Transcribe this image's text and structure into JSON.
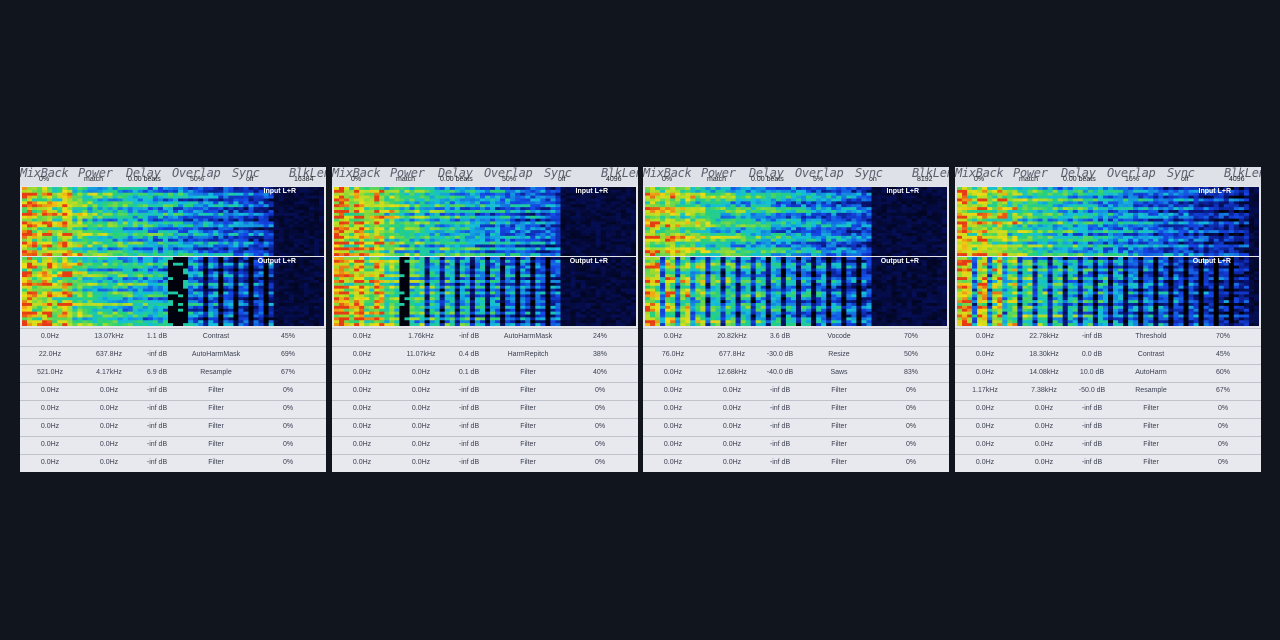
{
  "colors": {
    "background": "#11151d",
    "panel": "#e4e6ec",
    "spectrum_low": "#0a1a8c",
    "spectrum_mid": "#20d0a0",
    "spectrum_high": "#e8e020",
    "spectrum_peak": "#e03010"
  },
  "header_labels": [
    "MixBack",
    "Power",
    "Delay",
    "Overlap",
    "Sync",
    "BlkLen"
  ],
  "panels": [
    {
      "header_values": [
        "0%",
        "match",
        "0.00 beats",
        "50%",
        "off",
        "16384"
      ],
      "input_label": "Input L+R",
      "output_label": "Output L+R",
      "rows": [
        [
          "0.0Hz",
          "13.07kHz",
          "1.1 dB",
          "Contrast",
          "45%"
        ],
        [
          "22.0Hz",
          "637.8Hz",
          "-inf dB",
          "AutoHarmMask",
          "69%"
        ],
        [
          "521.0Hz",
          "4.17kHz",
          "6.9 dB",
          "Resample",
          "67%"
        ],
        [
          "0.0Hz",
          "0.0Hz",
          "-inf dB",
          "Filter",
          "0%"
        ],
        [
          "0.0Hz",
          "0.0Hz",
          "-inf dB",
          "Filter",
          "0%"
        ],
        [
          "0.0Hz",
          "0.0Hz",
          "-inf dB",
          "Filter",
          "0%"
        ],
        [
          "0.0Hz",
          "0.0Hz",
          "-inf dB",
          "Filter",
          "0%"
        ],
        [
          "0.0Hz",
          "0.0Hz",
          "-inf dB",
          "Filter",
          "0%"
        ]
      ]
    },
    {
      "header_values": [
        "0%",
        "match",
        "0.00 beats",
        "50%",
        "off",
        "4096"
      ],
      "input_label": "Input L+R",
      "output_label": "Output L+R",
      "rows": [
        [
          "0.0Hz",
          "1.76kHz",
          "-inf dB",
          "AutoHarmMask",
          "24%"
        ],
        [
          "0.0Hz",
          "11.07kHz",
          "0.4 dB",
          "HarmRepitch",
          "38%"
        ],
        [
          "0.0Hz",
          "0.0Hz",
          "0.1 dB",
          "Filter",
          "40%"
        ],
        [
          "0.0Hz",
          "0.0Hz",
          "-inf dB",
          "Filter",
          "0%"
        ],
        [
          "0.0Hz",
          "0.0Hz",
          "-inf dB",
          "Filter",
          "0%"
        ],
        [
          "0.0Hz",
          "0.0Hz",
          "-inf dB",
          "Filter",
          "0%"
        ],
        [
          "0.0Hz",
          "0.0Hz",
          "-inf dB",
          "Filter",
          "0%"
        ],
        [
          "0.0Hz",
          "0.0Hz",
          "-inf dB",
          "Filter",
          "0%"
        ]
      ]
    },
    {
      "header_values": [
        "0%",
        "match",
        "0.00 beats",
        "5%",
        "on",
        "8192"
      ],
      "input_label": "Input L+R",
      "output_label": "Output L+R",
      "rows": [
        [
          "0.0Hz",
          "20.82kHz",
          "3.6 dB",
          "Vocode",
          "70%"
        ],
        [
          "76.0Hz",
          "677.8Hz",
          "-30.0 dB",
          "Resize",
          "50%"
        ],
        [
          "0.0Hz",
          "12.68kHz",
          "-40.0 dB",
          "Saws",
          "83%"
        ],
        [
          "0.0Hz",
          "0.0Hz",
          "-inf dB",
          "Filter",
          "0%"
        ],
        [
          "0.0Hz",
          "0.0Hz",
          "-inf dB",
          "Filter",
          "0%"
        ],
        [
          "0.0Hz",
          "0.0Hz",
          "-inf dB",
          "Filter",
          "0%"
        ],
        [
          "0.0Hz",
          "0.0Hz",
          "-inf dB",
          "Filter",
          "0%"
        ],
        [
          "0.0Hz",
          "0.0Hz",
          "-inf dB",
          "Filter",
          "0%"
        ]
      ]
    },
    {
      "header_values": [
        "0%",
        "match",
        "0.00 beats",
        "16%",
        "off",
        "4096"
      ],
      "input_label": "Input L+R",
      "output_label": "Output L+R",
      "rows": [
        [
          "0.0Hz",
          "22.78kHz",
          "-inf dB",
          "Threshold",
          "70%"
        ],
        [
          "0.0Hz",
          "18.30kHz",
          "0.0 dB",
          "Contrast",
          "45%"
        ],
        [
          "0.0Hz",
          "14.08kHz",
          "10.0 dB",
          "AutoHarm",
          "60%"
        ],
        [
          "1.17kHz",
          "7.38kHz",
          "-50.0 dB",
          "Resample",
          "67%"
        ],
        [
          "0.0Hz",
          "0.0Hz",
          "-inf dB",
          "Filter",
          "0%"
        ],
        [
          "0.0Hz",
          "0.0Hz",
          "-inf dB",
          "Filter",
          "0%"
        ],
        [
          "0.0Hz",
          "0.0Hz",
          "-inf dB",
          "Filter",
          "0%"
        ],
        [
          "0.0Hz",
          "0.0Hz",
          "-inf dB",
          "Filter",
          "0%"
        ]
      ]
    }
  ]
}
